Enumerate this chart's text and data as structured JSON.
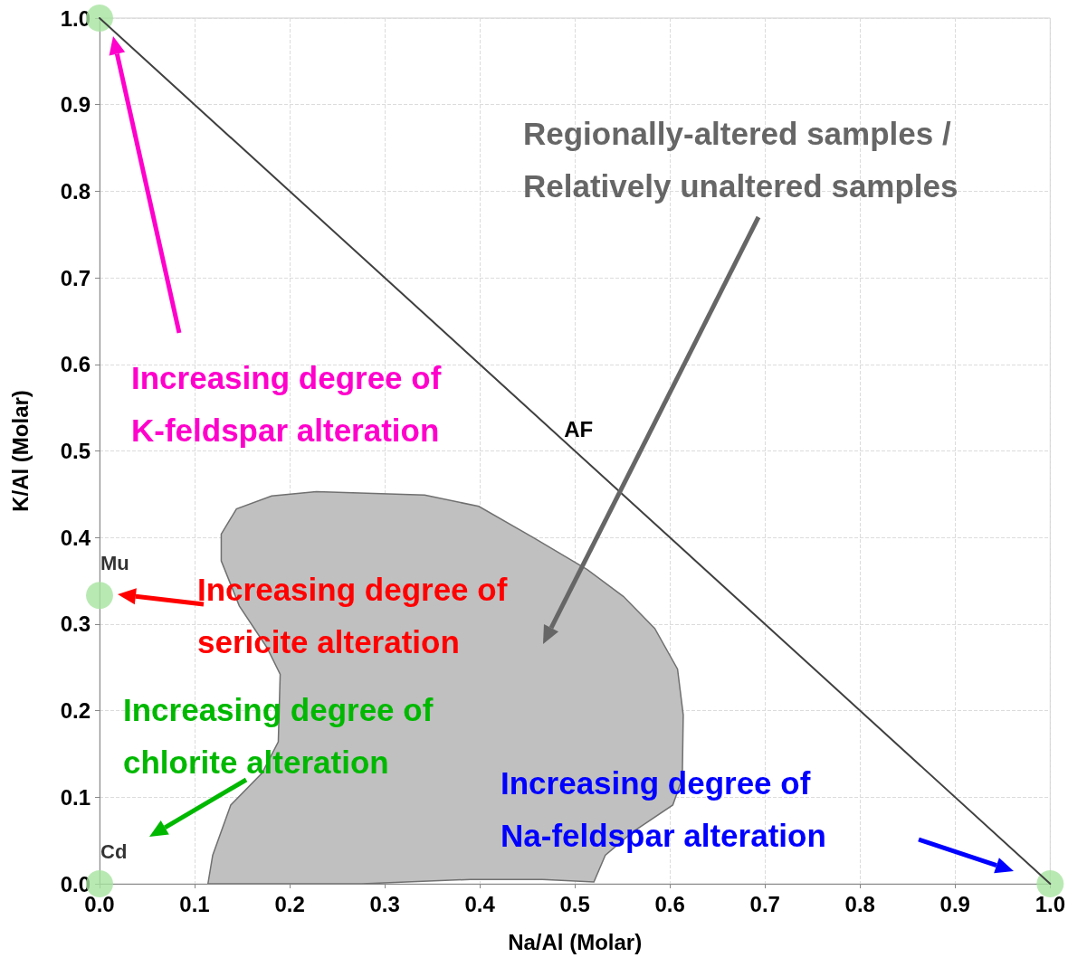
{
  "chart_data": {
    "type": "scatter",
    "xlabel": "Na/Al (Molar)",
    "ylabel": "K/Al (Molar)",
    "xlim": [
      0,
      1
    ],
    "ylim": [
      0,
      1
    ],
    "xticks": [
      {
        "value": 0,
        "label": "0.0"
      },
      0.1,
      0.2,
      0.3,
      0.4,
      0.5,
      0.6,
      0.7,
      0.8,
      0.9,
      {
        "value": 1,
        "label": "1.0"
      }
    ],
    "yticks": [
      {
        "value": 0,
        "label": "0.0"
      },
      0.1,
      0.2,
      0.3,
      0.4,
      0.5,
      0.6,
      0.7,
      0.8,
      0.9,
      {
        "value": 1,
        "label": "1.0"
      }
    ],
    "grid": true,
    "series": [
      {
        "type": "area",
        "color": "#c0c0c0",
        "x": [
          0.114,
          0.119,
          0.138,
          0.171,
          0.188,
          0.19,
          0.176,
          0.147,
          0.128,
          0.128,
          0.144,
          0.181,
          0.228,
          0.342,
          0.399,
          0.456,
          0.513,
          0.551,
          0.584,
          0.608,
          0.614,
          0.613,
          0.603,
          0.561,
          0.532,
          0.52,
          0.466,
          0.39,
          0.276
        ],
        "values": [
          0.0,
          0.033,
          0.091,
          0.128,
          0.164,
          0.242,
          0.273,
          0.321,
          0.373,
          0.404,
          0.433,
          0.448,
          0.453,
          0.449,
          0.436,
          0.4,
          0.363,
          0.332,
          0.295,
          0.248,
          0.195,
          0.122,
          0.091,
          0.06,
          0.033,
          0.002,
          0.005,
          0.005,
          0.0
        ]
      },
      {
        "type": "line",
        "color": "#404040",
        "marker": "none",
        "x": [
          0,
          1
        ],
        "values": [
          1,
          0
        ]
      },
      {
        "color": "#a8e4a0",
        "marker": "circle",
        "x": [
          0,
          0,
          0,
          1
        ],
        "values": [
          1,
          0.333,
          0,
          0
        ],
        "value_labels": [
          null,
          "Mu",
          "Cd",
          null
        ]
      }
    ],
    "annotations": [
      {
        "text": "AF",
        "x": 0.5,
        "y": 0.5
      },
      "Increasing degree of\nK-feldspar alteration",
      "Increasing degree of\nsericite alteration",
      "Increasing degree of\nchlorite alteration",
      "Increasing degree of\nNa-feldspar alteration",
      "Regionally-altered samples /\nRelatively unaltered samples"
    ]
  }
}
